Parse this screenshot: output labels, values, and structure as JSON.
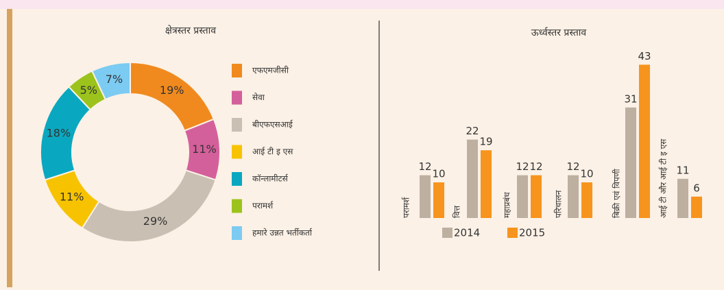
{
  "chart_data": [
    {
      "type": "donut",
      "title": "क्षेत्रस्तर प्रस्ताव",
      "categories": [
        "एफएमजीसी",
        "सेवा",
        "बीएफएसआई",
        "आई टी इ एस",
        "कॉन्लामीटर्स",
        "परामर्श",
        "हमारे उन्नत भर्तीकर्ता"
      ],
      "values": [
        19,
        11,
        29,
        11,
        18,
        5,
        7
      ],
      "value_labels": [
        "19%",
        "11%",
        "29%",
        "11%",
        "18%",
        "5%",
        "7%"
      ],
      "colors": [
        "#f08a1e",
        "#d4609b",
        "#c9c0b3",
        "#f7c300",
        "#0aa8c0",
        "#9cc31c",
        "#7ccbf2"
      ]
    },
    {
      "type": "bar",
      "title": "ऊर्ध्वस्तर प्रस्ताव",
      "categories": [
        "परामर्श",
        "वित्त",
        "महाप्रबंध",
        "परिचालन",
        "बिक्री एवं विपणी",
        "आई टी और आई टी इ एस"
      ],
      "series": [
        {
          "name": "2014",
          "color": "#bdb0a0",
          "values": [
            12,
            22,
            12,
            12,
            31,
            11
          ]
        },
        {
          "name": "2015",
          "color": "#f7941d",
          "values": [
            10,
            19,
            12,
            10,
            43,
            6
          ]
        }
      ]
    }
  ]
}
